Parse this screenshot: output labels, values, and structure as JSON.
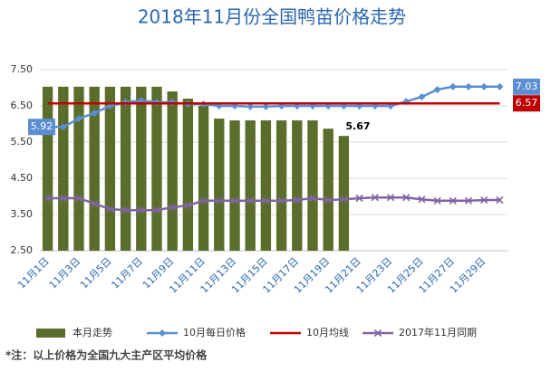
{
  "chart_data": {
    "type": "bar",
    "title": "2018年11月份全国鸭苗价格走势",
    "categories": [
      "11月1日",
      null,
      "11月3日",
      null,
      "11月5日",
      null,
      "11月7日",
      null,
      "11月9日",
      null,
      "11月11日",
      null,
      "11月13日",
      null,
      "11月15日",
      null,
      "11月17日",
      null,
      "11月19日",
      null,
      "11月21日",
      null,
      "11月23日",
      null,
      "11月25日",
      null,
      "11月27日",
      null,
      "11月29日",
      null
    ],
    "ylim": [
      2.5,
      7.5
    ],
    "yticks": [
      {
        "value": 2.5,
        "label": "2.50"
      },
      {
        "value": 3.5,
        "label": "3.50"
      },
      {
        "value": 4.5,
        "label": "4.50"
      },
      {
        "value": 5.5,
        "label": "5.50"
      },
      {
        "value": 6.5,
        "label": "6.50"
      },
      {
        "value": 7.5,
        "label": "7.50"
      }
    ],
    "grid": true,
    "series": [
      {
        "name": "本月走势",
        "type": "bar",
        "color": "#5b6d2b",
        "values": [
          7.03,
          7.03,
          7.03,
          7.03,
          7.03,
          7.03,
          7.03,
          7.03,
          6.9,
          6.7,
          6.5,
          6.15,
          6.1,
          6.1,
          6.1,
          6.1,
          6.1,
          6.1,
          5.87,
          5.67,
          null,
          null,
          null,
          null,
          null,
          null,
          null,
          null,
          null,
          null
        ],
        "value_labels": [
          null,
          null,
          null,
          null,
          null,
          null,
          null,
          null,
          null,
          null,
          null,
          null,
          null,
          null,
          null,
          null,
          null,
          null,
          null,
          "5.67",
          null,
          null,
          null,
          null,
          null,
          null,
          null,
          null,
          null,
          null
        ]
      },
      {
        "name": "10月每日价格",
        "type": "line",
        "marker": "diamond",
        "color": "#5a8ed0",
        "values": [
          5.92,
          5.92,
          6.15,
          6.3,
          6.5,
          6.6,
          6.65,
          6.6,
          6.6,
          6.55,
          6.55,
          6.5,
          6.5,
          6.48,
          6.48,
          6.5,
          6.5,
          6.5,
          6.5,
          6.5,
          6.5,
          6.5,
          6.5,
          6.62,
          6.75,
          6.95,
          7.03,
          7.03,
          7.03,
          7.03
        ],
        "value_labels": [
          "5.92",
          null,
          null,
          null,
          null,
          null,
          null,
          null,
          null,
          null,
          null,
          null,
          null,
          null,
          null,
          null,
          null,
          null,
          null,
          null,
          null,
          null,
          null,
          null,
          null,
          null,
          null,
          null,
          null,
          "7.03"
        ]
      },
      {
        "name": "10月均线",
        "type": "line",
        "marker": "none",
        "color": "#c00000",
        "values": [
          6.57,
          6.57,
          6.57,
          6.57,
          6.57,
          6.57,
          6.57,
          6.57,
          6.57,
          6.57,
          6.57,
          6.57,
          6.57,
          6.57,
          6.57,
          6.57,
          6.57,
          6.57,
          6.57,
          6.57,
          6.57,
          6.57,
          6.57,
          6.57,
          6.57,
          6.57,
          6.57,
          6.57,
          6.57,
          6.57
        ],
        "value_labels": [
          null,
          null,
          null,
          null,
          null,
          null,
          null,
          null,
          null,
          null,
          null,
          null,
          null,
          null,
          null,
          null,
          null,
          null,
          null,
          null,
          null,
          null,
          null,
          null,
          null,
          null,
          null,
          null,
          null,
          "6.57"
        ]
      },
      {
        "name": "2017年11月同期",
        "type": "line",
        "marker": "x",
        "color": "#8064a2",
        "values": [
          3.95,
          3.95,
          3.95,
          3.8,
          3.65,
          3.62,
          3.62,
          3.62,
          3.7,
          3.75,
          3.88,
          3.88,
          3.88,
          3.88,
          3.88,
          3.88,
          3.9,
          3.95,
          3.9,
          3.92,
          3.95,
          3.97,
          3.97,
          3.97,
          3.92,
          3.88,
          3.88,
          3.88,
          3.9,
          3.9
        ]
      }
    ],
    "footnote": "*注：以上价格为全国九大主产区平均价格"
  }
}
